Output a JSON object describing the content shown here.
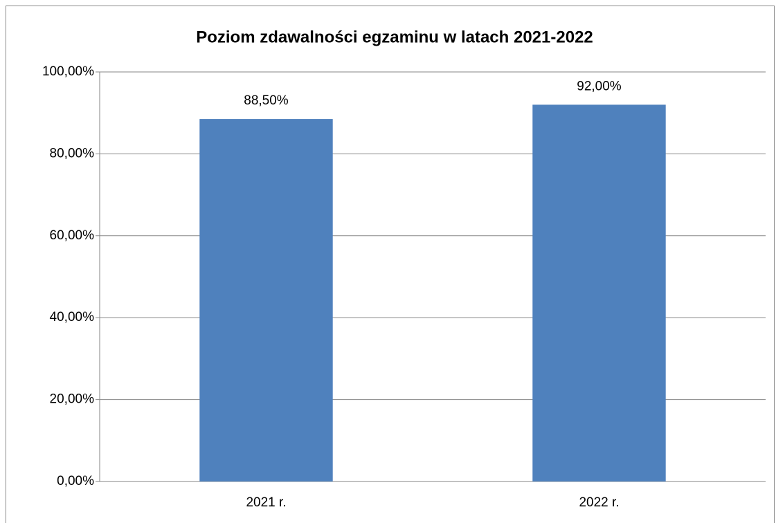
{
  "chart_data": {
    "type": "bar",
    "title": "Poziom zdawalności egzaminu w latach 2021-2022",
    "categories": [
      "2021 r.",
      "2022 r."
    ],
    "values": [
      88.5,
      92
    ],
    "value_labels": [
      "88,50%",
      "92,00%"
    ],
    "color": "#4f81bd",
    "ylim": [
      0,
      100
    ],
    "yticks": [
      {
        "value": 0,
        "label": "0,00%"
      },
      {
        "value": 20,
        "label": "20,00%"
      },
      {
        "value": 40,
        "label": "40,00%"
      },
      {
        "value": 60,
        "label": "60,00%"
      },
      {
        "value": 80,
        "label": "80,00%"
      },
      {
        "value": 100,
        "label": "100,00%"
      }
    ],
    "grid": true
  }
}
